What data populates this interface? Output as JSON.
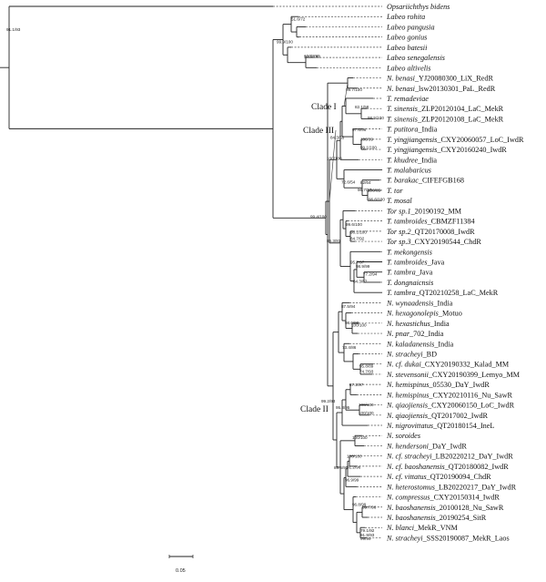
{
  "taxa": [
    {
      "genus": "Opsariichthys bidens",
      "suffix": ""
    },
    {
      "genus": "Labeo rohita",
      "suffix": ""
    },
    {
      "genus": "Labeo pangusia",
      "suffix": ""
    },
    {
      "genus": "Labeo gonius",
      "suffix": ""
    },
    {
      "genus": "Labeo batesii",
      "suffix": ""
    },
    {
      "genus": "Labeo senegalensis",
      "suffix": ""
    },
    {
      "genus": "Labeo altivelis",
      "suffix": ""
    },
    {
      "genus": "N. benasi",
      "suffix": "_YJ20080300_LiX_RedR"
    },
    {
      "genus": "N. benasi",
      "suffix": "_lsw20130301_PaL_RedR"
    },
    {
      "genus": "T. remadeviae",
      "suffix": ""
    },
    {
      "genus": "T. sinensis",
      "suffix": "_ZLP20120104_LaC_MekR"
    },
    {
      "genus": "T. sinensis",
      "suffix": "_ZLP20120108_LaC_MekR"
    },
    {
      "genus": "T. putitora",
      "suffix": "_India"
    },
    {
      "genus": "T. yingjiangensis",
      "suffix": "_CXY20060057_LoC_IwdR"
    },
    {
      "genus": "T. yingjiangensis",
      "suffix": "_CXY20160240_IwdR"
    },
    {
      "genus": "T. khudree",
      "suffix": "_India"
    },
    {
      "genus": "T. malabaricus",
      "suffix": ""
    },
    {
      "genus": "T. barakac",
      "suffix": "_CIFEFGB168"
    },
    {
      "genus": "T. tor",
      "suffix": ""
    },
    {
      "genus": "T. mosal",
      "suffix": ""
    },
    {
      "genus": "Tor sp.1",
      "suffix": "_20190192_MM"
    },
    {
      "genus": "T. tambroides",
      "suffix": "_CBMZF11384"
    },
    {
      "genus": "Tor sp.2",
      "suffix": "_QT20170008_IwdR"
    },
    {
      "genus": "Tor sp.3",
      "suffix": "_CXY20190544_ChdR"
    },
    {
      "genus": "T. mekongensis",
      "suffix": ""
    },
    {
      "genus": "T. tambroides",
      "suffix": "_Java"
    },
    {
      "genus": "T. tambra",
      "suffix": "_Java"
    },
    {
      "genus": "T. dongnaicnsis",
      "suffix": ""
    },
    {
      "genus": "T. tambra",
      "suffix": "_QT20210258_LaC_MekR"
    },
    {
      "genus": "N. wynaadensis",
      "suffix": "_India"
    },
    {
      "genus": "N. hexagonolepis",
      "suffix": "_Motuo"
    },
    {
      "genus": "N. hexastichus",
      "suffix": "_India"
    },
    {
      "genus": "N. pnar",
      "suffix": "_702_India"
    },
    {
      "genus": "N. kaladanensis",
      "suffix": "_India"
    },
    {
      "genus": "N. stracheyi",
      "suffix": "_BD"
    },
    {
      "genus": "N. cf. dukai",
      "suffix": "_CXY20190332_Kalad_MM"
    },
    {
      "genus": "N. stevensonii",
      "suffix": "_CXY20190399_Lemyo_MM"
    },
    {
      "genus": "N. hemispinus",
      "suffix": "_05530_DaY_IwdR"
    },
    {
      "genus": "N. hemispinus",
      "suffix": "_CXY20210116_Nu_SawR"
    },
    {
      "genus": "N. qiaojiensis",
      "suffix": "_CXY20060150_LoC_IwdR"
    },
    {
      "genus": "N. qiaojiensis",
      "suffix": "_QT2017002_IwdR"
    },
    {
      "genus": "N. nigrovittatus",
      "suffix": "_QT20180154_IneL"
    },
    {
      "genus": "N. soroides",
      "suffix": ""
    },
    {
      "genus": "N. hendersoni",
      "suffix": "_DaY_IwdR"
    },
    {
      "genus": "N. cf. stracheyi",
      "suffix": "_LB20220212_DaY_IwdR"
    },
    {
      "genus": "N. cf. baoshanensis",
      "suffix": "_QT20180082_IwdR"
    },
    {
      "genus": "N. cf. vittatus",
      "suffix": "_QT20190094_ChdR"
    },
    {
      "genus": "N. heterostomus",
      "suffix": "_LB20220217_DaY_IwdR"
    },
    {
      "genus": "N. compressus",
      "suffix": "_CXY20150314_IwdR"
    },
    {
      "genus": "N. baoshanensis",
      "suffix": "_20100128_Nu_SawR"
    },
    {
      "genus": "N. baoshanensis",
      "suffix": "_20190254_SitR"
    },
    {
      "genus": "N. blanci",
      "suffix": "_MekR_VNM"
    },
    {
      "genus": "N. stracheyi",
      "suffix": "_SSS20190087_MekR_Laos"
    }
  ],
  "clades": [
    "Clade I",
    "Clade III",
    "Clade II"
  ],
  "support": [
    "51.6/72",
    "91.1/93",
    "99.9/100",
    "97.5/100",
    "100/100",
    "99.7/100",
    "82.1/58",
    "98.5/100",
    "97.6/96",
    "100/99",
    "99.1/100",
    "84.3/55",
    "100/100",
    "82/64",
    "96.7/97",
    "100/85",
    "96.6/100",
    "72.6/54",
    "99.6/100",
    "98.1/100",
    "84.7/92",
    "86.3/81",
    "95.7/97",
    "98.9/99",
    "77.2/94",
    "84.3/87",
    "87.5/94",
    "99.4/100",
    "100/100",
    "98.6/90",
    "73.4/86",
    "95.8/89",
    "74.7/93",
    "99.2/93",
    "87.2/97",
    "100/100",
    "100/100",
    "95.3/95",
    "100/100",
    "86.5/95",
    "100/100",
    "91.2/96",
    "96.9/99",
    "96.8/99",
    "89.7/96",
    "79.1/92",
    "91.9/93",
    "99/99"
  ],
  "scale": "0.05"
}
